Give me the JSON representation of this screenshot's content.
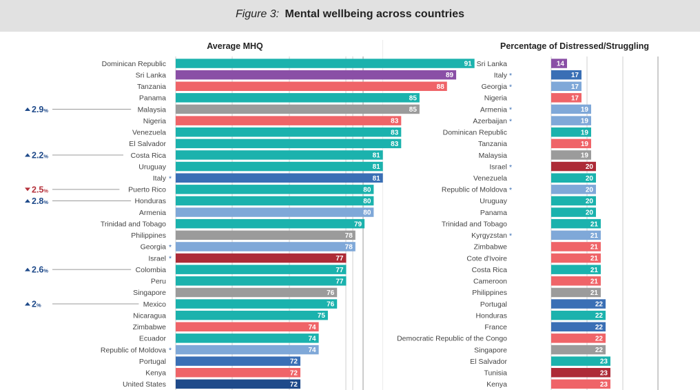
{
  "header": {
    "figure_label": "Figure 3:",
    "title": "Mental wellbeing across countries"
  },
  "colors": {
    "latin_america": "#1bb2ad",
    "south_asia": "#8a4fa6",
    "africa": "#ef6468",
    "southeast_asia": "#9b9b9b",
    "europe_central_asia": "#7fa8d8",
    "middle_east_north_africa": "#ad2b37",
    "anglosphere_europe": "#3a6fb5",
    "united_states": "#1f4a8a",
    "annotation_up": "#1f4a8a",
    "annotation_down": "#b5313b"
  },
  "chart_data": [
    {
      "type": "bar",
      "orientation": "horizontal",
      "title": "Average MHQ",
      "grid": true,
      "categories": [
        "Dominican Republic",
        "Sri Lanka",
        "Tanzania",
        "Panama",
        "Malaysia",
        "Nigeria",
        "Venezuela",
        "El Salvador",
        "Costa Rica",
        "Uruguay",
        "Italy",
        "Puerto Rico",
        "Honduras",
        "Armenia",
        "Trinidad and Tobago",
        "Philippines",
        "Georgia",
        "Israel",
        "Colombia",
        "Peru",
        "Singapore",
        "Mexico",
        "Nicaragua",
        "Zimbabwe",
        "Ecuador",
        "Republic of Moldova",
        "Portugal",
        "Kenya",
        "United States"
      ],
      "values": [
        91,
        89,
        88,
        85,
        85,
        83,
        83,
        83,
        81,
        81,
        81,
        80,
        80,
        80,
        79,
        78,
        78,
        77,
        77,
        77,
        76,
        76,
        75,
        74,
        74,
        74,
        72,
        72,
        72
      ],
      "groups": [
        "latin_america",
        "south_asia",
        "africa",
        "latin_america",
        "southeast_asia",
        "africa",
        "latin_america",
        "latin_america",
        "latin_america",
        "latin_america",
        "anglosphere_europe",
        "latin_america",
        "latin_america",
        "europe_central_asia",
        "latin_america",
        "southeast_asia",
        "europe_central_asia",
        "middle_east_north_africa",
        "latin_america",
        "latin_america",
        "southeast_asia",
        "latin_america",
        "latin_america",
        "africa",
        "latin_america",
        "europe_central_asia",
        "anglosphere_europe",
        "africa",
        "united_states"
      ],
      "starred": [
        "Italy",
        "Georgia",
        "Israel",
        "Republic of Moldova"
      ],
      "annotations": [
        {
          "category": "Malaysia",
          "value": "2.9",
          "unit": "%",
          "direction": "up"
        },
        {
          "category": "Costa Rica",
          "value": "2.2",
          "unit": "%",
          "direction": "up"
        },
        {
          "category": "Puerto Rico",
          "value": "2.5",
          "unit": "%",
          "direction": "down"
        },
        {
          "category": "Honduras",
          "value": "2.8",
          "unit": "%",
          "direction": "up"
        },
        {
          "category": "Colombia",
          "value": "2.6",
          "unit": "%",
          "direction": "up"
        },
        {
          "category": "Mexico",
          "value": "2",
          "unit": "%",
          "direction": "up"
        }
      ]
    },
    {
      "type": "bar",
      "orientation": "horizontal",
      "title": "Percentage of Distressed/Struggling",
      "grid": true,
      "categories": [
        "Sri Lanka",
        "Italy",
        "Georgia",
        "Nigeria",
        "Armenia",
        "Azerbaijan",
        "Dominican Republic",
        "Tanzania",
        "Malaysia",
        "Israel",
        "Venezuela",
        "Republic of Moldova",
        "Uruguay",
        "Panama",
        "Trinidad and Tobago",
        "Kyrgyzstan",
        "Zimbabwe",
        "Cote d'Ivoire",
        "Costa Rica",
        "Cameroon",
        "Philippines",
        "Portugal",
        "Honduras",
        "France",
        "Democratic Republic of the Congo",
        "Singapore",
        "El Salvador",
        "Tunisia",
        "Kenya"
      ],
      "values": [
        14,
        17,
        17,
        17,
        19,
        19,
        19,
        19,
        19,
        20,
        20,
        20,
        20,
        20,
        21,
        21,
        21,
        21,
        21,
        21,
        21,
        22,
        22,
        22,
        22,
        22,
        23,
        23,
        23
      ],
      "groups": [
        "south_asia",
        "anglosphere_europe",
        "europe_central_asia",
        "africa",
        "europe_central_asia",
        "europe_central_asia",
        "latin_america",
        "africa",
        "southeast_asia",
        "middle_east_north_africa",
        "latin_america",
        "europe_central_asia",
        "latin_america",
        "latin_america",
        "latin_america",
        "europe_central_asia",
        "africa",
        "africa",
        "latin_america",
        "africa",
        "southeast_asia",
        "anglosphere_europe",
        "latin_america",
        "anglosphere_europe",
        "africa",
        "southeast_asia",
        "latin_america",
        "middle_east_north_africa",
        "africa"
      ],
      "starred": [
        "Italy",
        "Georgia",
        "Armenia",
        "Azerbaijan",
        "Israel",
        "Republic of Moldova",
        "Kyrgyzstan"
      ]
    }
  ]
}
